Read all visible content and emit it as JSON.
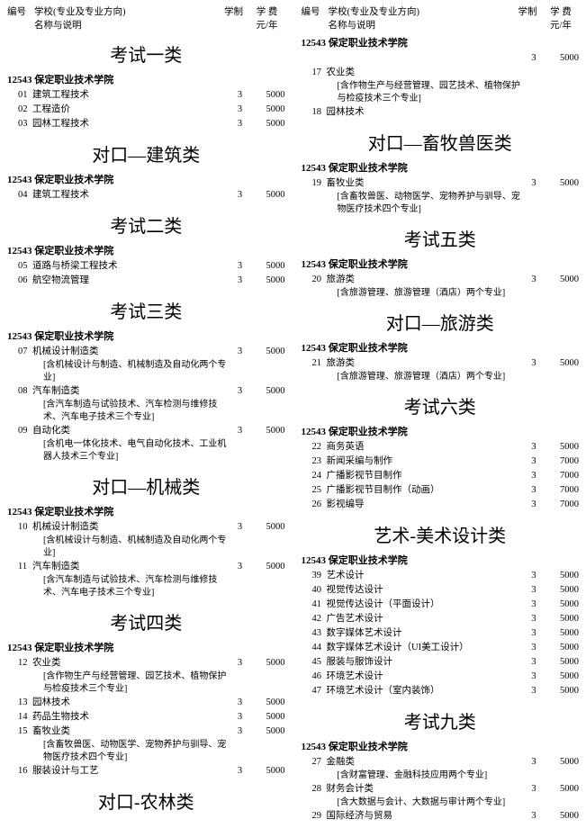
{
  "header": {
    "col1": "编号",
    "col2a": "学校(专业及专业方向)",
    "col2b": "名称与说明",
    "col3": "学制",
    "col4a": "学 费",
    "col4b": "元/年"
  },
  "school_code": "12543",
  "school_name": "保定职业技术学院",
  "left": [
    {
      "type": "cat",
      "text": "考试一类"
    },
    {
      "type": "school"
    },
    {
      "type": "major",
      "code": "01",
      "name": "建筑工程技术",
      "dura": "3",
      "fee": "5000"
    },
    {
      "type": "major",
      "code": "02",
      "name": "工程造价",
      "dura": "3",
      "fee": "5000"
    },
    {
      "type": "major",
      "code": "03",
      "name": "园林工程技术",
      "dura": "3",
      "fee": "5000"
    },
    {
      "type": "cat",
      "text": "对口—建筑类"
    },
    {
      "type": "school"
    },
    {
      "type": "major",
      "code": "04",
      "name": "建筑工程技术",
      "dura": "3",
      "fee": "5000"
    },
    {
      "type": "cat",
      "text": "考试二类"
    },
    {
      "type": "school"
    },
    {
      "type": "major",
      "code": "05",
      "name": "道路与桥梁工程技术",
      "dura": "3",
      "fee": "5000"
    },
    {
      "type": "major",
      "code": "06",
      "name": "航空物流管理",
      "dura": "3",
      "fee": "5000"
    },
    {
      "type": "cat",
      "text": "考试三类"
    },
    {
      "type": "school"
    },
    {
      "type": "major",
      "code": "07",
      "name": "机械设计制造类",
      "dura": "3",
      "fee": "5000"
    },
    {
      "type": "note",
      "text": "[含机械设计与制造、机械制造及自动化两个专业]"
    },
    {
      "type": "major",
      "code": "08",
      "name": "汽车制造类",
      "dura": "3",
      "fee": "5000"
    },
    {
      "type": "note",
      "text": "[含汽车制造与试验技术、汽车检测与维修技术、汽车电子技术三个专业]"
    },
    {
      "type": "major",
      "code": "09",
      "name": "自动化类",
      "dura": "3",
      "fee": "5000"
    },
    {
      "type": "note",
      "text": "[含机电一体化技术、电气自动化技术、工业机器人技术三个专业]"
    },
    {
      "type": "cat",
      "text": "对口—机械类"
    },
    {
      "type": "school"
    },
    {
      "type": "major",
      "code": "10",
      "name": "机械设计制造类",
      "dura": "3",
      "fee": "5000"
    },
    {
      "type": "note",
      "text": "[含机械设计与制造、机械制造及自动化两个专业]"
    },
    {
      "type": "major",
      "code": "11",
      "name": "汽车制造类",
      "dura": "3",
      "fee": "5000"
    },
    {
      "type": "note",
      "text": "[含汽车制造与试验技术、汽车检测与维修技术、汽车电子技术三个专业]"
    },
    {
      "type": "cat",
      "text": "考试四类"
    },
    {
      "type": "school"
    },
    {
      "type": "major",
      "code": "12",
      "name": "农业类",
      "dura": "3",
      "fee": "5000"
    },
    {
      "type": "note",
      "text": "[含作物生产与经营管理、园艺技术、植物保护与检疫技术三个专业]"
    },
    {
      "type": "major",
      "code": "13",
      "name": "园林技术",
      "dura": "3",
      "fee": "5000"
    },
    {
      "type": "major",
      "code": "14",
      "name": "药品生物技术",
      "dura": "3",
      "fee": "5000"
    },
    {
      "type": "major",
      "code": "15",
      "name": "畜牧业类",
      "dura": "3",
      "fee": "5000"
    },
    {
      "type": "note",
      "text": "[含畜牧兽医、动物医学、宠物养护与驯导、宠物医疗技术四个专业]"
    },
    {
      "type": "major",
      "code": "16",
      "name": "服装设计与工艺",
      "dura": "3",
      "fee": "5000"
    },
    {
      "type": "cat",
      "text": "对口-农林类"
    }
  ],
  "right": [
    {
      "type": "school"
    },
    {
      "type": "major",
      "code": "",
      "name": "",
      "dura": "3",
      "fee": "5000"
    },
    {
      "type": "major",
      "code": "17",
      "name": "农业类",
      "dura": "",
      "fee": ""
    },
    {
      "type": "note",
      "text": "[含作物生产与经营管理、园艺技术、植物保护与检疫技术三个专业]"
    },
    {
      "type": "major",
      "code": "18",
      "name": "园林技术",
      "dura": "",
      "fee": ""
    },
    {
      "type": "cat",
      "text": "对口—畜牧兽医类"
    },
    {
      "type": "school"
    },
    {
      "type": "major",
      "code": "19",
      "name": "畜牧业类",
      "dura": "3",
      "fee": "5000"
    },
    {
      "type": "note",
      "text": "[含畜牧兽医、动物医学、宠物养护与驯导、宠物医疗技术四个专业]"
    },
    {
      "type": "cat",
      "text": "考试五类"
    },
    {
      "type": "school"
    },
    {
      "type": "major",
      "code": "20",
      "name": "旅游类",
      "dura": "3",
      "fee": "5000"
    },
    {
      "type": "note",
      "text": "[含旅游管理、旅游管理（酒店）两个专业]"
    },
    {
      "type": "cat",
      "text": "对口—旅游类"
    },
    {
      "type": "school"
    },
    {
      "type": "major",
      "code": "21",
      "name": "旅游类",
      "dura": "3",
      "fee": "5000"
    },
    {
      "type": "note",
      "text": "[含旅游管理、旅游管理（酒店）两个专业]"
    },
    {
      "type": "cat",
      "text": "考试六类"
    },
    {
      "type": "school"
    },
    {
      "type": "major",
      "code": "22",
      "name": "商务英语",
      "dura": "3",
      "fee": "5000"
    },
    {
      "type": "major",
      "code": "23",
      "name": "新闻采编与制作",
      "dura": "3",
      "fee": "7000"
    },
    {
      "type": "major",
      "code": "24",
      "name": "广播影视节目制作",
      "dura": "3",
      "fee": "7000"
    },
    {
      "type": "major",
      "code": "25",
      "name": "广播影视节目制作（动画）",
      "dura": "3",
      "fee": "7000"
    },
    {
      "type": "major",
      "code": "26",
      "name": "影视编导",
      "dura": "3",
      "fee": "7000"
    },
    {
      "type": "cat",
      "text": "艺术-美术设计类"
    },
    {
      "type": "school"
    },
    {
      "type": "major",
      "code": "39",
      "name": "艺术设计",
      "dura": "3",
      "fee": "5000"
    },
    {
      "type": "major",
      "code": "40",
      "name": "视觉传达设计",
      "dura": "3",
      "fee": "5000"
    },
    {
      "type": "major",
      "code": "41",
      "name": "视觉传达设计（平面设计）",
      "dura": "3",
      "fee": "5000"
    },
    {
      "type": "major",
      "code": "42",
      "name": "广告艺术设计",
      "dura": "3",
      "fee": "5000"
    },
    {
      "type": "major",
      "code": "43",
      "name": "数字媒体艺术设计",
      "dura": "3",
      "fee": "5000"
    },
    {
      "type": "major",
      "code": "44",
      "name": "数字媒体艺术设计（UI美工设计）",
      "dura": "3",
      "fee": "5000"
    },
    {
      "type": "major",
      "code": "45",
      "name": "服装与服饰设计",
      "dura": "3",
      "fee": "5000"
    },
    {
      "type": "major",
      "code": "46",
      "name": "环境艺术设计",
      "dura": "3",
      "fee": "5000"
    },
    {
      "type": "major",
      "code": "47",
      "name": "环境艺术设计（室内装饰）",
      "dura": "3",
      "fee": "5000"
    },
    {
      "type": "cat",
      "text": "考试九类"
    },
    {
      "type": "school"
    },
    {
      "type": "major",
      "code": "27",
      "name": "金融类",
      "dura": "3",
      "fee": "5000"
    },
    {
      "type": "note",
      "text": "[含财富管理、金融科技应用两个专业]"
    },
    {
      "type": "major",
      "code": "28",
      "name": "财务会计类",
      "dura": "3",
      "fee": "5000"
    },
    {
      "type": "note",
      "text": "[含大数据与会计、大数据与审计两个专业]"
    },
    {
      "type": "major",
      "code": "29",
      "name": "国际经济与贸易",
      "dura": "3",
      "fee": "5000"
    }
  ]
}
